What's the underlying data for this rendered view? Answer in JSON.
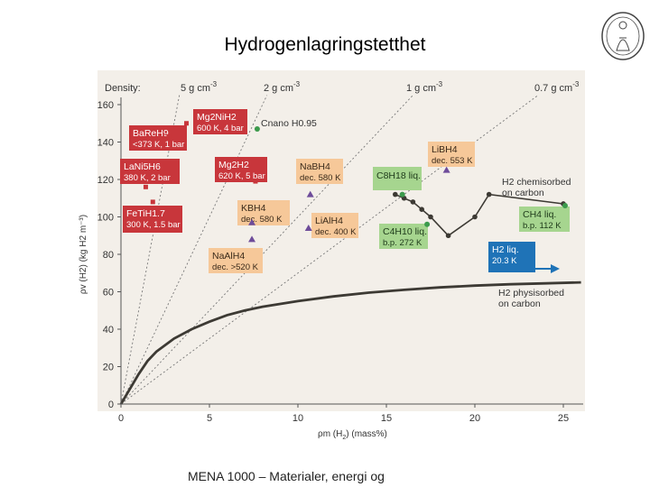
{
  "slide": {
    "title": "Hydrogenlagringstetthet",
    "footer": "MENA 1000 – Materialer, energi og"
  },
  "colors": {
    "panel_bg": "#f3efe9",
    "red_box": "#c8363b",
    "orange_box": "#f6c899",
    "green_box": "#a6d58f",
    "blue_box": "#1f73b7",
    "curve": "#3d3a34",
    "marker_purple": "#6e4c9a",
    "marker_green": "#3c9a4c"
  },
  "chart_data": {
    "type": "scatter",
    "xlabel_main": "ρm (H",
    "xlabel_sub": "2",
    "xlabel_tail": ") (mass%)",
    "ylabel": "ρv (H2) (kg H2 m⁻³)",
    "xlim": [
      0,
      26
    ],
    "ylim": [
      0,
      165
    ],
    "xticks": [
      "0",
      "5",
      "10",
      "15",
      "20",
      "25"
    ],
    "yticks": [
      "0",
      "20",
      "40",
      "60",
      "80",
      "100",
      "120",
      "140",
      "160"
    ],
    "density_label": "Density:",
    "density_lines": [
      {
        "label": "5 g cm",
        "exp": "-3",
        "density": 5
      },
      {
        "label": "2 g cm",
        "exp": "-3",
        "density": 2
      },
      {
        "label": "1 g cm",
        "exp": "-3",
        "density": 1
      },
      {
        "label": "0.7 g cm",
        "exp": "-3",
        "density": 0.7
      }
    ],
    "physisorbed_curve": [
      [
        0,
        0
      ],
      [
        0.5,
        8
      ],
      [
        1,
        16
      ],
      [
        1.5,
        23
      ],
      [
        2,
        28
      ],
      [
        3,
        35
      ],
      [
        4,
        40
      ],
      [
        5,
        44
      ],
      [
        6,
        47.5
      ],
      [
        7,
        50
      ],
      [
        8,
        52
      ],
      [
        10,
        55
      ],
      [
        12,
        57.5
      ],
      [
        14,
        59.5
      ],
      [
        16,
        61
      ],
      [
        18,
        62.3
      ],
      [
        20,
        63.3
      ],
      [
        22,
        64
      ],
      [
        24,
        64.5
      ],
      [
        26,
        65
      ]
    ],
    "chemisorbed_curve": [
      [
        15.5,
        112
      ],
      [
        16,
        110
      ],
      [
        16.5,
        108
      ],
      [
        17,
        104
      ],
      [
        17.5,
        100
      ],
      [
        18.5,
        90
      ],
      [
        20,
        100
      ],
      [
        20.8,
        112
      ],
      [
        25,
        107
      ]
    ],
    "annotations": [
      {
        "label": "H2 chemisorbed",
        "sub": "on carbon"
      },
      {
        "label": "H2 physisorbed",
        "sub": "on carbon"
      }
    ],
    "materials": [
      {
        "name": "Mg2NiH2",
        "detail": "600 K, 4 bar",
        "style": "red",
        "x": 3.7,
        "y": 150
      },
      {
        "name": "BaReH9",
        "detail": "<373 K, 1 bar",
        "style": "red",
        "x": 2.7,
        "y": 143
      },
      {
        "name": "Cnano H0.95",
        "detail": "",
        "style": "plain",
        "x": 7.7,
        "y": 147
      },
      {
        "name": "LaNi5H6",
        "detail": "380 K, 2 bar",
        "style": "red",
        "x": 1.4,
        "y": 116
      },
      {
        "name": "Mg2H2",
        "detail": "620 K, 5 bar",
        "style": "red",
        "x": 7.6,
        "y": 119
      },
      {
        "name": "NaBH4",
        "detail": "dec. 580 K",
        "style": "orange",
        "x": 10.7,
        "y": 112
      },
      {
        "name": "LiBH4",
        "detail": "dec. 553 K",
        "style": "orange",
        "x": 18.4,
        "y": 125
      },
      {
        "name": "C8H18 liq.",
        "detail": "",
        "style": "green",
        "x": 15.9,
        "y": 112
      },
      {
        "name": "FeTiH1.7",
        "detail": "300 K, 1.5 bar",
        "style": "red",
        "x": 1.8,
        "y": 108
      },
      {
        "name": "KBH4",
        "detail": "dec. 580 K",
        "style": "orange",
        "x": 7.4,
        "y": 97
      },
      {
        "name": "LiAlH4",
        "detail": "dec. 400 K",
        "style": "orange",
        "x": 10.6,
        "y": 94
      },
      {
        "name": "C4H10 liq.",
        "detail": "b.p. 272 K",
        "style": "green",
        "x": 17.3,
        "y": 96
      },
      {
        "name": "CH4 liq.",
        "detail": "b.p. 112 K",
        "style": "green",
        "x": 25.1,
        "y": 106
      },
      {
        "name": "NaAlH4",
        "detail": "dec. >520 K",
        "style": "orange",
        "x": 7.4,
        "y": 88
      },
      {
        "name": "H2 liq.",
        "detail": "20.3 K",
        "style": "blue",
        "x": 25,
        "y": 70
      }
    ]
  }
}
